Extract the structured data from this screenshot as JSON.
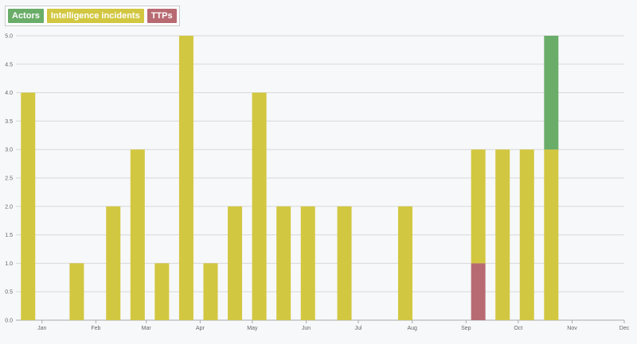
{
  "legend": [
    {
      "label": "Actors",
      "color": "#6aad69"
    },
    {
      "label": "Intelligence incidents",
      "color": "#d2c740"
    },
    {
      "label": "TTPs",
      "color": "#b86a72"
    }
  ],
  "chart_data": {
    "type": "bar",
    "stacked": true,
    "grid": true,
    "legend_position": "top-left",
    "ylim": [
      0,
      5
    ],
    "y_ticks": [
      "0.0",
      "0.5",
      "1.0",
      "1.5",
      "2.0",
      "2.5",
      "3.0",
      "3.5",
      "4.0",
      "4.5",
      "5.0"
    ],
    "x_axis": {
      "type": "date",
      "range": [
        "2019-12-17",
        "2020-12-01"
      ]
    },
    "x_ticks": [
      {
        "date": "2020-01-01",
        "label": "Jan"
      },
      {
        "date": "2020-02-01",
        "label": "Feb"
      },
      {
        "date": "2020-03-01",
        "label": "Mar"
      },
      {
        "date": "2020-04-01",
        "label": "Apr"
      },
      {
        "date": "2020-05-01",
        "label": "May"
      },
      {
        "date": "2020-06-01",
        "label": "Jun"
      },
      {
        "date": "2020-07-01",
        "label": "Jul"
      },
      {
        "date": "2020-08-01",
        "label": "Aug"
      },
      {
        "date": "2020-09-01",
        "label": "Sep"
      },
      {
        "date": "2020-10-01",
        "label": "Oct"
      },
      {
        "date": "2020-11-01",
        "label": "Nov"
      },
      {
        "date": "2020-12-01",
        "label": "Dec"
      }
    ],
    "x": [
      "2019-12-24",
      "2020-01-21",
      "2020-02-11",
      "2020-02-25",
      "2020-03-10",
      "2020-03-24",
      "2020-04-07",
      "2020-04-21",
      "2020-05-05",
      "2020-05-19",
      "2020-06-02",
      "2020-06-23",
      "2020-07-28",
      "2020-09-08",
      "2020-09-22",
      "2020-10-06",
      "2020-10-20"
    ],
    "series": [
      {
        "name": "TTPs",
        "color": "#b86a72",
        "values": [
          0,
          0,
          0,
          0,
          0,
          0,
          0,
          0,
          0,
          0,
          0,
          0,
          0,
          1,
          0,
          0,
          0
        ]
      },
      {
        "name": "Intelligence incidents",
        "color": "#d2c740",
        "values": [
          4,
          1,
          2,
          3,
          1,
          5,
          1,
          2,
          4,
          2,
          2,
          2,
          2,
          2,
          3,
          3,
          3
        ]
      },
      {
        "name": "Actors",
        "color": "#6aad69",
        "values": [
          0,
          0,
          0,
          0,
          0,
          0,
          0,
          0,
          0,
          0,
          0,
          0,
          0,
          0,
          0,
          0,
          2
        ]
      }
    ]
  }
}
